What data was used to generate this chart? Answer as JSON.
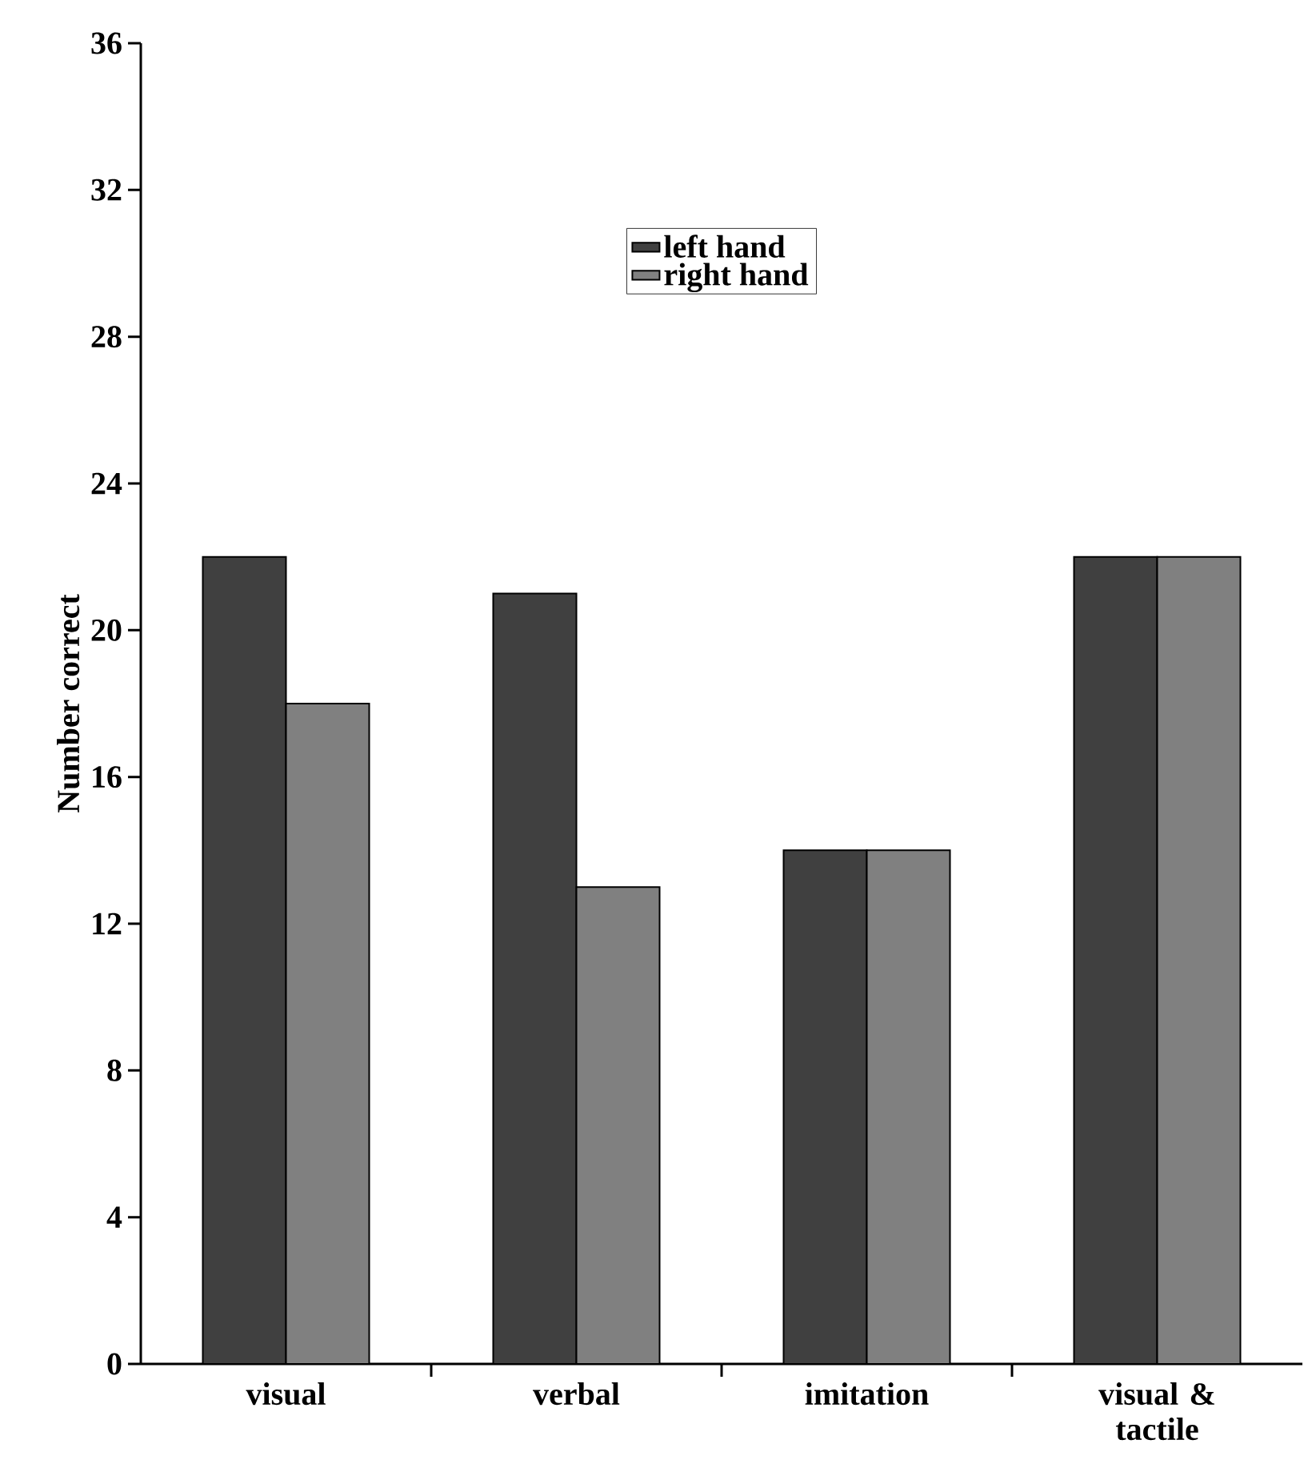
{
  "chart_data": {
    "type": "bar",
    "ylabel": "Number correct",
    "categories": [
      "visual",
      "verbal",
      "imitation",
      "visual & tactile"
    ],
    "series": [
      {
        "name": "left hand",
        "color": "#404040",
        "values": [
          22,
          21,
          14,
          22
        ]
      },
      {
        "name": "right hand",
        "color": "#808080",
        "values": [
          18,
          13,
          14,
          22
        ]
      }
    ],
    "ylim": [
      0,
      36
    ],
    "yticks": [
      0,
      4,
      8,
      12,
      16,
      20,
      24,
      28,
      32,
      36
    ],
    "legend": "top"
  }
}
